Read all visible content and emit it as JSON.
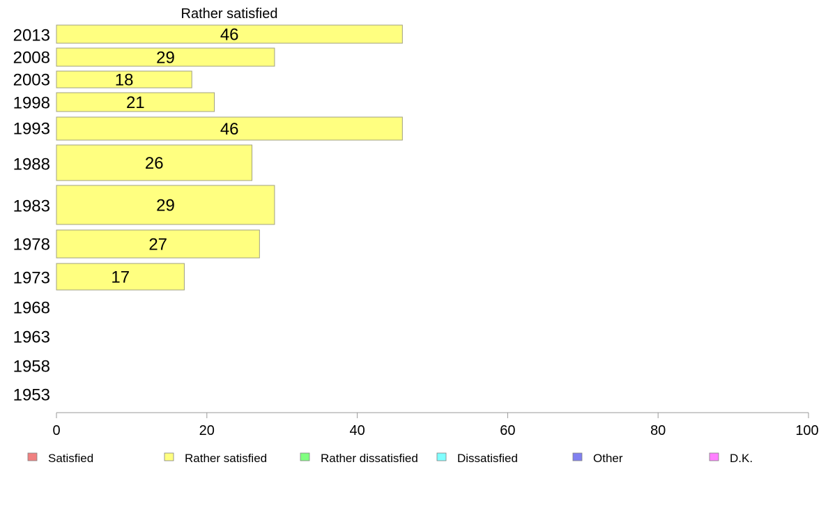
{
  "chart_data": {
    "type": "bar",
    "orientation": "horizontal",
    "title": "Rather satisfied",
    "categories": [
      "2013",
      "2008",
      "2003",
      "1998",
      "1993",
      "1988",
      "1983",
      "1978",
      "1973",
      "1968",
      "1963",
      "1958",
      "1953"
    ],
    "values": [
      46,
      29,
      18,
      21,
      46,
      26,
      29,
      27,
      17,
      null,
      null,
      null,
      null
    ],
    "value_labels": [
      "46",
      "29",
      "18",
      "21",
      "46",
      "26",
      "29",
      "27",
      "17",
      "",
      "",
      "",
      ""
    ],
    "xlim": [
      0,
      100
    ],
    "xticks": [
      "0",
      "20",
      "40",
      "60",
      "80",
      "100"
    ],
    "xticks_values": [
      0,
      20,
      40,
      60,
      80,
      100
    ],
    "bar_color": "#ffff80",
    "bar_stroke": "#a0a080",
    "legend_position": "bottom",
    "legend": [
      {
        "label": "Satisfied",
        "color": "#f08080"
      },
      {
        "label": "Rather satisfied",
        "color": "#ffff80"
      },
      {
        "label": "Rather dissatisfied",
        "color": "#80ff80"
      },
      {
        "label": "Dissatisfied",
        "color": "#80ffff"
      },
      {
        "label": "Other",
        "color": "#8080f0"
      },
      {
        "label": "D.K.",
        "color": "#ff80ff"
      }
    ]
  }
}
